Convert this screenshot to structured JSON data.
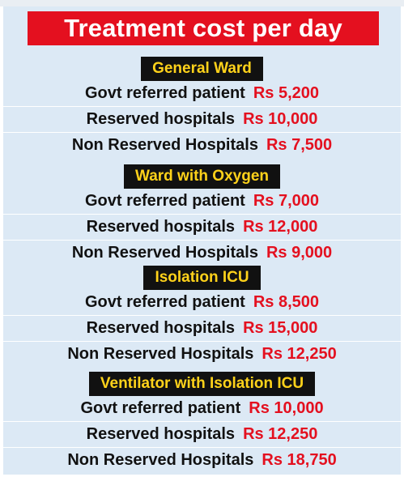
{
  "title": "Treatment cost per day",
  "sections": [
    {
      "header": "General Ward",
      "rows": [
        {
          "label": "Govt referred patient",
          "price": "Rs 5,200"
        },
        {
          "label": "Reserved hospitals",
          "price": "Rs 10,000"
        },
        {
          "label": "Non Reserved Hospitals",
          "price": "Rs 7,500"
        }
      ]
    },
    {
      "header": "Ward with Oxygen",
      "rows": [
        {
          "label": "Govt referred patient",
          "price": "Rs 7,000"
        },
        {
          "label": "Reserved hospitals",
          "price": "Rs 12,000"
        },
        {
          "label": "Non Reserved Hospitals",
          "price": "Rs 9,000"
        }
      ]
    },
    {
      "header": "Isolation ICU",
      "rows": [
        {
          "label": "Govt referred patient",
          "price": "Rs 8,500"
        },
        {
          "label": "Reserved hospitals",
          "price": "Rs 15,000"
        },
        {
          "label": "Non Reserved Hospitals",
          "price": "Rs 12,250"
        }
      ]
    },
    {
      "header": "Ventilator with Isolation ICU",
      "rows": [
        {
          "label": "Govt referred patient",
          "price": "Rs 10,000"
        },
        {
          "label": "Reserved hospitals",
          "price": "Rs 12,250"
        },
        {
          "label": "Non Reserved Hospitals",
          "price": "Rs 18,750"
        }
      ]
    }
  ],
  "colors": {
    "title_background": "#e4101f",
    "header_background": "#111111",
    "header_text": "#ffd21a",
    "price_text": "#e4101f",
    "panel_background": "#dce9f5"
  }
}
